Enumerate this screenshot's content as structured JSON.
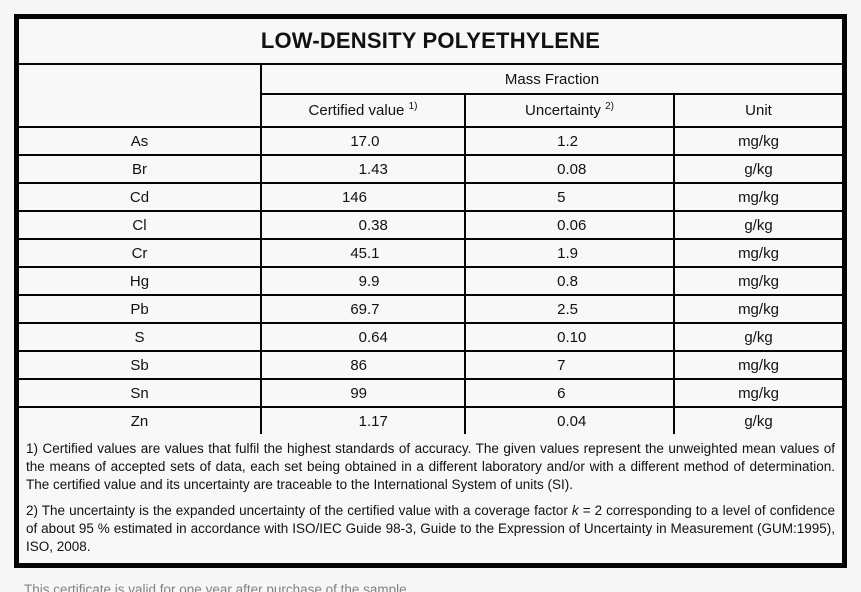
{
  "title": "LOW-DENSITY POLYETHYLENE",
  "table": {
    "group_header": "Mass Fraction",
    "headers": {
      "certified": {
        "label": "Certified value",
        "footnote_ref": "1)"
      },
      "uncertainty": {
        "label": "Uncertainty",
        "footnote_ref": "2)"
      },
      "unit": "Unit"
    },
    "rows": [
      {
        "element": "As",
        "certified_value": "17.0",
        "uncertainty": "1.2",
        "unit": "mg/kg"
      },
      {
        "element": "Br",
        "certified_value": "1.43",
        "uncertainty": "0.08",
        "unit": "g/kg"
      },
      {
        "element": "Cd",
        "certified_value": "146",
        "uncertainty": "5",
        "unit": "mg/kg"
      },
      {
        "element": "Cl",
        "certified_value": "0.38",
        "uncertainty": "0.06",
        "unit": "g/kg"
      },
      {
        "element": "Cr",
        "certified_value": "45.1",
        "uncertainty": "1.9",
        "unit": "mg/kg"
      },
      {
        "element": "Hg",
        "certified_value": "9.9",
        "uncertainty": "0.8",
        "unit": "mg/kg"
      },
      {
        "element": "Pb",
        "certified_value": "69.7",
        "uncertainty": "2.5",
        "unit": "mg/kg"
      },
      {
        "element": "S",
        "certified_value": "0.64",
        "uncertainty": "0.10",
        "unit": "g/kg"
      },
      {
        "element": "Sb",
        "certified_value": "86",
        "uncertainty": "7",
        "unit": "mg/kg"
      },
      {
        "element": "Sn",
        "certified_value": "99",
        "uncertainty": "6",
        "unit": "mg/kg"
      },
      {
        "element": "Zn",
        "certified_value": "1.17",
        "uncertainty": "0.04",
        "unit": "g/kg"
      }
    ]
  },
  "footnotes": {
    "note1": "1) Certified values are values that fulfil the highest standards of accuracy. The given values represent the unweighted mean values of the means of accepted sets of data, each set being obtained in a different laboratory and/or with a different method of determination. The certified value and its uncertainty are traceable to the International System of units (SI).",
    "note2_before_k": "2) The uncertainty is the expanded uncertainty of the certified value with a coverage factor ",
    "k_symbol": "k",
    "note2_after_k": " = 2 corresponding to a level of confidence of about 95 % estimated in accordance with ISO/IEC Guide 98-3, Guide to the Expression of Uncertainty in Measurement (GUM:1995), ISO, 2008."
  },
  "bottom_note": "This certificate is valid for one year after purchase of the sample."
}
